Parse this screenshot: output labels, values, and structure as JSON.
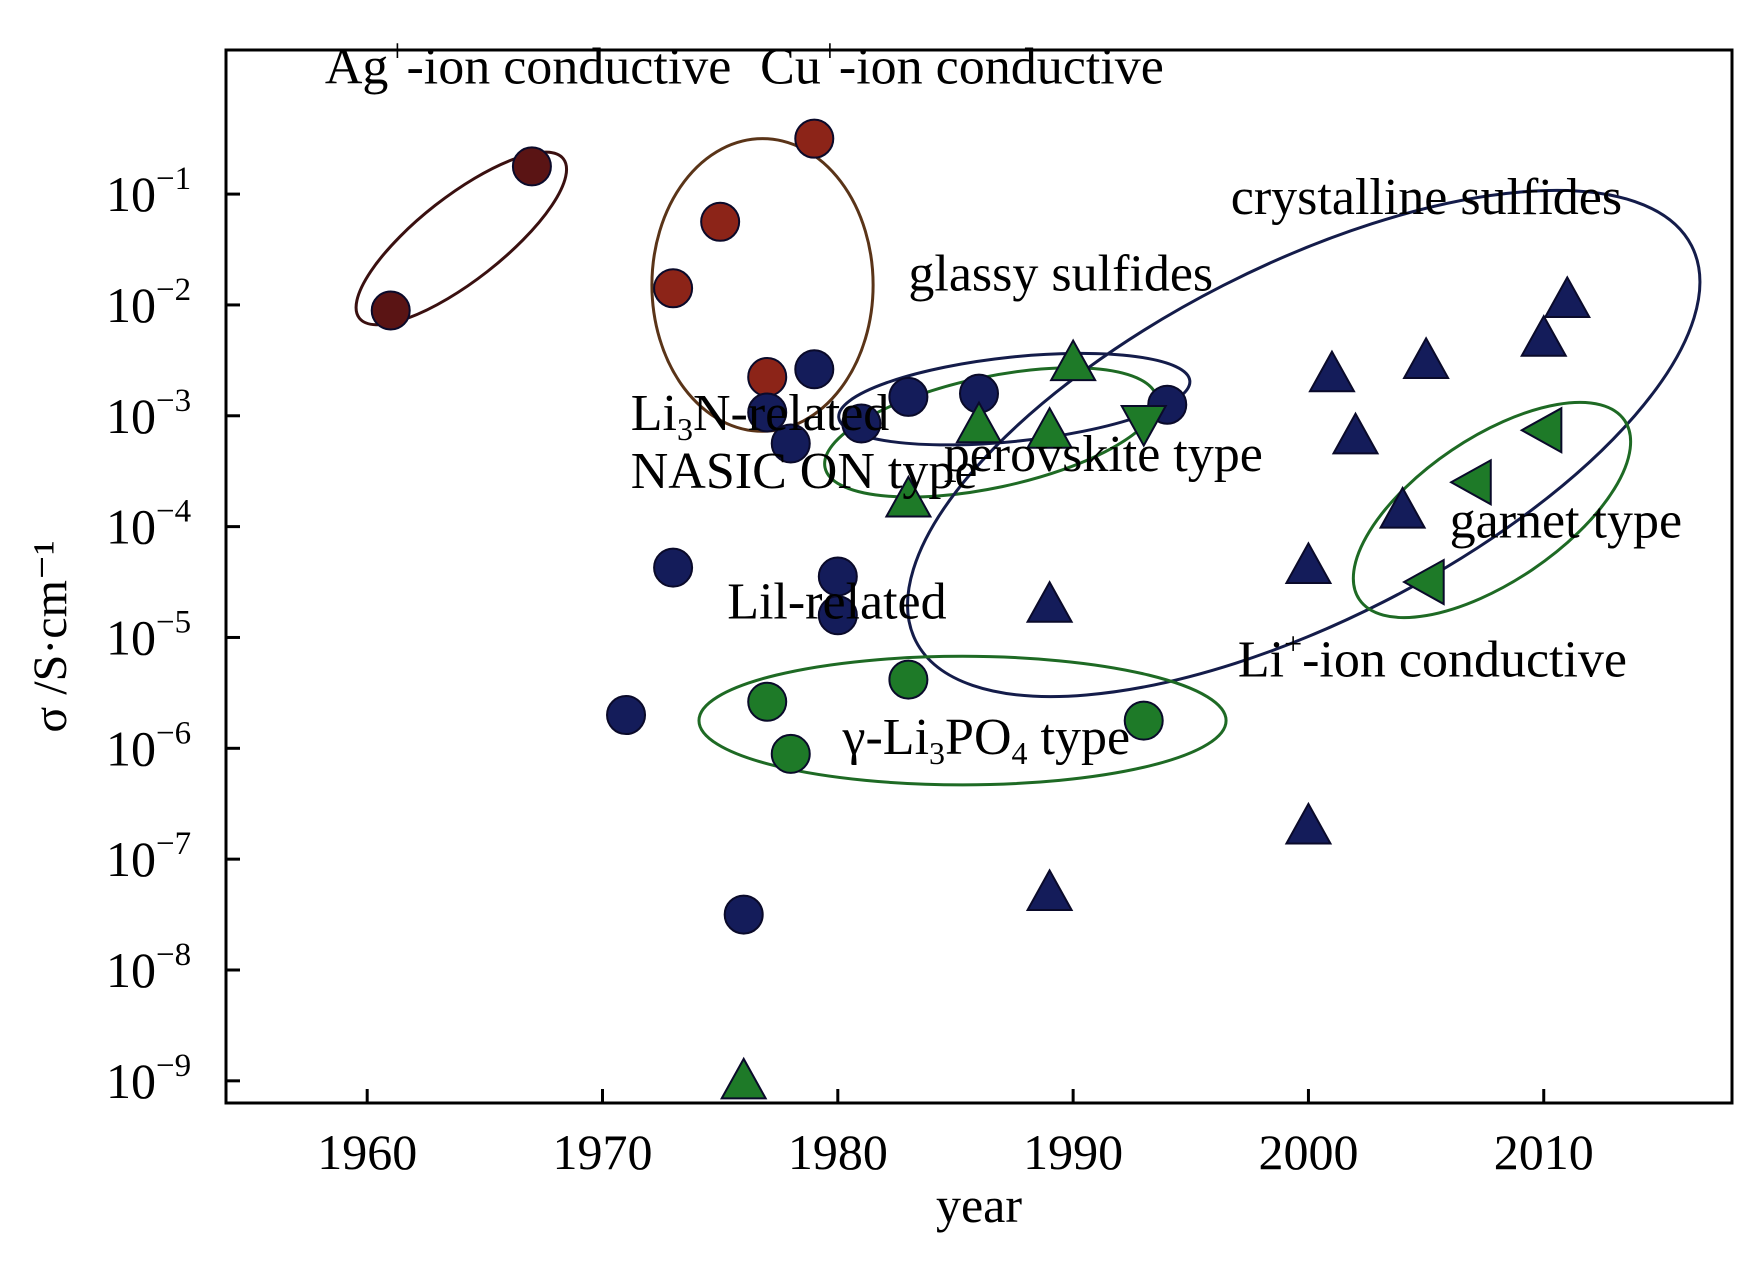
{
  "chart_data": {
    "type": "scatter",
    "xlabel": "year",
    "ylabel": "σ /S·cm⁻¹",
    "xlim": [
      1954,
      2018
    ],
    "ylim": [
      -9.2,
      0.3
    ],
    "log_y": true,
    "grid": false,
    "x_ticks": [
      1960,
      1970,
      1980,
      1990,
      2000,
      2010
    ],
    "x_tick_labels": [
      "1960",
      "1970",
      "1980",
      "1990",
      "2000",
      "2010"
    ],
    "y_ticks": [
      {
        "value": -1,
        "mantissa": "10",
        "exponent": "−1"
      },
      {
        "value": -2,
        "mantissa": "10",
        "exponent": "−2"
      },
      {
        "value": -3,
        "mantissa": "10",
        "exponent": "−3"
      },
      {
        "value": -4,
        "mantissa": "10",
        "exponent": "−4"
      },
      {
        "value": -5,
        "mantissa": "10",
        "exponent": "−5"
      },
      {
        "value": -6,
        "mantissa": "10",
        "exponent": "−6"
      },
      {
        "value": -7,
        "mantissa": "10",
        "exponent": "−7"
      },
      {
        "value": -8,
        "mantissa": "10",
        "exponent": "−8"
      },
      {
        "value": -9,
        "mantissa": "10",
        "exponent": "−9"
      }
    ],
    "colors": {
      "ag": "#5a1414",
      "cu": "#8c2418",
      "navy": "#141c5a",
      "green": "#1e7a28",
      "ellipse_ag": "#3a1010",
      "ellipse_cu": "#5a3418",
      "ellipse_navy": "#141c4a",
      "ellipse_green": "#1e6a24"
    },
    "series": [
      {
        "key": "ag",
        "marker": "circle",
        "color": "#5a1414",
        "points": [
          [
            1961,
            -2.05
          ],
          [
            1967,
            -0.75
          ]
        ]
      },
      {
        "key": "cu",
        "marker": "circle",
        "color": "#8c2418",
        "points": [
          [
            1973,
            -1.85
          ],
          [
            1975,
            -1.25
          ],
          [
            1977,
            -2.65
          ],
          [
            1979,
            -0.5
          ]
        ]
      },
      {
        "key": "navy-circle",
        "marker": "circle",
        "color": "#141c5a",
        "points": [
          [
            1971,
            -5.7
          ],
          [
            1973,
            -4.37
          ],
          [
            1976,
            -7.5
          ],
          [
            1977,
            -2.97
          ],
          [
            1978,
            -3.25
          ],
          [
            1979,
            -2.58
          ],
          [
            1980,
            -4.45
          ],
          [
            1980,
            -4.8
          ],
          [
            1981,
            -3.07
          ],
          [
            1983,
            -2.83
          ],
          [
            1986,
            -2.8
          ],
          [
            1994,
            -2.9
          ]
        ]
      },
      {
        "key": "green-circle",
        "marker": "circle",
        "color": "#1e7a28",
        "points": [
          [
            1977,
            -5.58
          ],
          [
            1978,
            -6.05
          ],
          [
            1983,
            -5.38
          ],
          [
            1993,
            -5.75
          ]
        ]
      },
      {
        "key": "green-triangle",
        "marker": "triangle-up",
        "color": "#1e7a28",
        "points": [
          [
            1976,
            -9.0
          ],
          [
            1983,
            -3.75
          ],
          [
            1986,
            -3.08
          ],
          [
            1989,
            -3.13
          ],
          [
            1990,
            -2.52
          ]
        ]
      },
      {
        "key": "green-triangle-down",
        "marker": "triangle-down",
        "color": "#1e7a28",
        "points": [
          [
            1993,
            -3.07
          ]
        ]
      },
      {
        "key": "green-triangle-left",
        "marker": "triangle-left",
        "color": "#1e7a28",
        "points": [
          [
            2005,
            -4.5
          ],
          [
            2007,
            -3.6
          ],
          [
            2010,
            -3.13
          ]
        ]
      },
      {
        "key": "navy-triangle",
        "marker": "triangle-up",
        "color": "#141c5a",
        "points": [
          [
            1989,
            -4.7
          ],
          [
            1989,
            -7.3
          ],
          [
            2000,
            -4.35
          ],
          [
            2000,
            -6.7
          ],
          [
            2001,
            -2.62
          ],
          [
            2002,
            -3.18
          ],
          [
            2004,
            -3.85
          ],
          [
            2005,
            -2.5
          ],
          [
            2010,
            -2.3
          ],
          [
            2011,
            -1.95
          ]
        ]
      }
    ],
    "groups": [
      {
        "key": "ag",
        "color": "#3a1010",
        "cx": 1964.0,
        "cy": -1.4,
        "rx": 5.5,
        "ry": 0.38,
        "angle": -38
      },
      {
        "key": "cu",
        "color": "#5a3418",
        "cx": 1976.8,
        "cy": -1.82,
        "rx": 4.7,
        "ry": 1.32,
        "angle": 0
      },
      {
        "key": "glassy",
        "color": "#141c4a",
        "cx": 1987.5,
        "cy": -2.85,
        "rx": 7.5,
        "ry": 0.38,
        "angle": -6
      },
      {
        "key": "perovskite",
        "color": "#1e6a24",
        "cx": 1986.5,
        "cy": -3.15,
        "rx": 7.2,
        "ry": 0.5,
        "angle": -12
      },
      {
        "key": "crystalline",
        "color": "#141c4a",
        "cx": 1999.8,
        "cy": -3.25,
        "rx": 18.5,
        "ry": 1.6,
        "angle": -27
      },
      {
        "key": "lipo",
        "color": "#1e6a24",
        "cx": 1985.3,
        "cy": -5.75,
        "rx": 11.2,
        "ry": 0.58,
        "angle": 0
      },
      {
        "key": "garnet",
        "color": "#1e6a24",
        "cx": 2007.8,
        "cy": -3.85,
        "rx": 6.8,
        "ry": 0.65,
        "angle": -34
      }
    ],
    "annotations": [
      {
        "key": "ag",
        "text": "Ag",
        "sup": "+",
        "after": "-ion conductive",
        "x": 1958.2,
        "y": -0.0
      },
      {
        "key": "cu",
        "text": "Cu",
        "sup": "+",
        "after": "-ion conductive",
        "x": 1976.7,
        "y": -0.0
      },
      {
        "key": "crystalline",
        "text": "crystalline sulfides",
        "x": 1996.7,
        "y": -1.18
      },
      {
        "key": "glassy",
        "text": "glassy sulfides",
        "x": 1983.0,
        "y": -1.87
      },
      {
        "key": "li3n",
        "text": "Li",
        "sub": "3",
        "after": "N-related",
        "x": 1971.2,
        "y": -3.13
      },
      {
        "key": "nasicon",
        "text": "NASIC ON type",
        "x": 1971.2,
        "y": -3.65
      },
      {
        "key": "perovskite",
        "text": "perovskite type",
        "x": 1984.5,
        "y": -3.5
      },
      {
        "key": "garnet",
        "text": "garnet type",
        "x": 2006.0,
        "y": -4.1
      },
      {
        "key": "lil",
        "text": "Lil-related",
        "x": 1975.3,
        "y": -4.83
      },
      {
        "key": "liion",
        "text": "Li",
        "sup": "+",
        "after": "-ion conductive",
        "x": 1997.0,
        "y": -5.35
      },
      {
        "key": "lipo4",
        "text": "γ-Li",
        "sub": "3",
        "mid": "PO",
        "sub2": "4",
        "after": " type",
        "x": 1980.2,
        "y": -6.05
      }
    ]
  }
}
